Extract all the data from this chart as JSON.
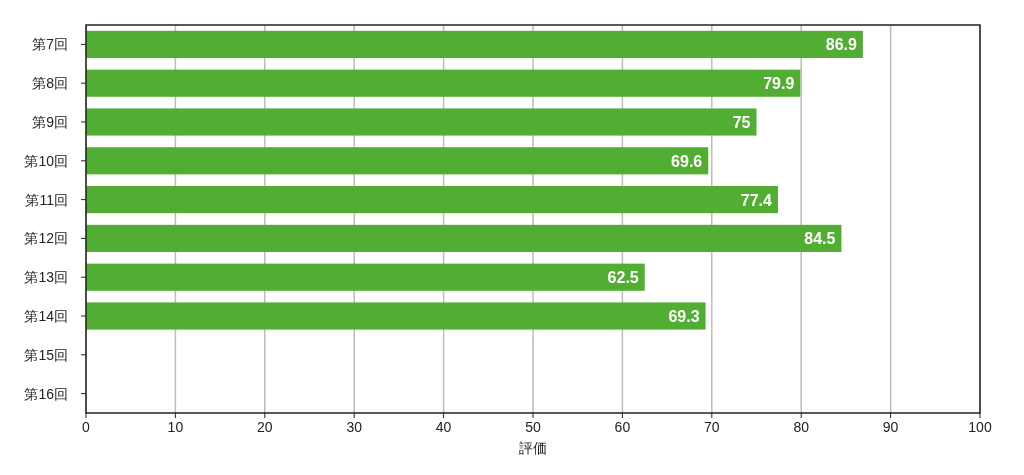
{
  "chart_data": {
    "type": "bar",
    "orientation": "horizontal",
    "xlabel": "評価",
    "categories": [
      "第7回",
      "第8回",
      "第9回",
      "第10回",
      "第11回",
      "第12回",
      "第13回",
      "第14回",
      "第15回",
      "第16回"
    ],
    "values": [
      86.9,
      79.9,
      75,
      69.6,
      77.4,
      84.5,
      62.5,
      69.3,
      null,
      null
    ],
    "color": "#52ae32",
    "xlim": [
      0,
      100
    ],
    "xticks": [
      0,
      10,
      20,
      30,
      40,
      50,
      60,
      70,
      80,
      90,
      100
    ],
    "grid": "x",
    "data_labels": true
  }
}
